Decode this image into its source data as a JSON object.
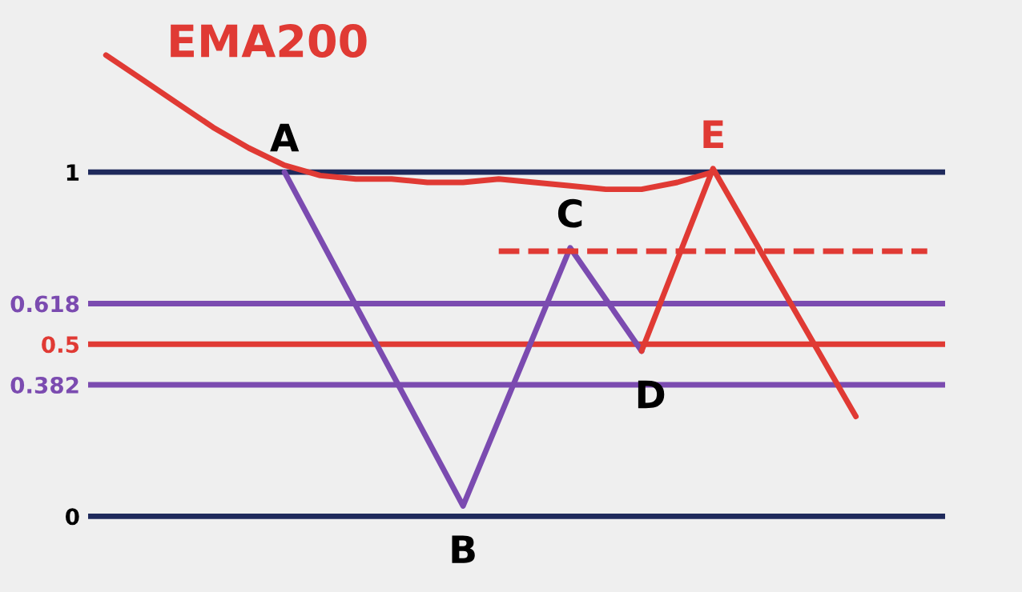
{
  "chart_data": {
    "type": "line",
    "categories": [
      null,
      null,
      null,
      null,
      null,
      null,
      null,
      null,
      null,
      null,
      null,
      null,
      null,
      null,
      null,
      null,
      null,
      null,
      null,
      null,
      null,
      null,
      null,
      null
    ],
    "series": [
      {
        "color": "#7b4bb0",
        "values": [
          null,
          null,
          null,
          null,
          null,
          1,
          null,
          null,
          null,
          null,
          0.03,
          null,
          null,
          0.78,
          null,
          0.48,
          null,
          null,
          null,
          null,
          null,
          null,
          null,
          null
        ]
      },
      {
        "color": "#e03a34",
        "values": [
          null,
          null,
          null,
          null,
          null,
          null,
          null,
          null,
          null,
          null,
          null,
          null,
          null,
          null,
          null,
          0.48,
          null,
          1.01,
          null,
          null,
          null,
          0.29,
          null,
          null
        ]
      },
      {
        "name": "EMA200",
        "color": "#e03a34",
        "values": [
          1.34,
          1.27,
          1.2,
          1.13,
          1.07,
          1.02,
          0.99,
          0.98,
          0.98,
          0.97,
          0.97,
          0.98,
          0.97,
          0.96,
          0.95,
          0.95,
          0.97,
          1.0,
          null,
          null,
          null,
          null,
          null,
          null
        ]
      },
      {
        "color": "#e03a34",
        "line_style": "dashed",
        "values": [
          null,
          null,
          null,
          null,
          null,
          null,
          null,
          null,
          null,
          null,
          null,
          0.77,
          0.77,
          0.77,
          0.77,
          0.77,
          0.77,
          0.77,
          0.77,
          0.77,
          0.77,
          0.77,
          0.77,
          0.77
        ]
      }
    ],
    "ref_lines": [
      {
        "axis": "y",
        "value": 1,
        "color": "#1f2a5c"
      },
      {
        "axis": "y",
        "value": 0.618,
        "color": "#7b4bb0"
      },
      {
        "axis": "y",
        "value": 0.5,
        "color": "#e03a34"
      },
      {
        "axis": "y",
        "value": 0.382,
        "color": "#7b4bb0"
      },
      {
        "axis": "y",
        "value": 0,
        "color": "#1f2a5c"
      }
    ],
    "annotations": [
      "A",
      "B",
      "C",
      "D",
      "E"
    ],
    "ylim": [
      -0.22,
      1.5
    ],
    "yticks": [
      0,
      0.382,
      0.5,
      0.618,
      1
    ],
    "tick_labels": "y",
    "grid": false,
    "legend": false,
    "marker": "none",
    "line_style": "solid"
  }
}
